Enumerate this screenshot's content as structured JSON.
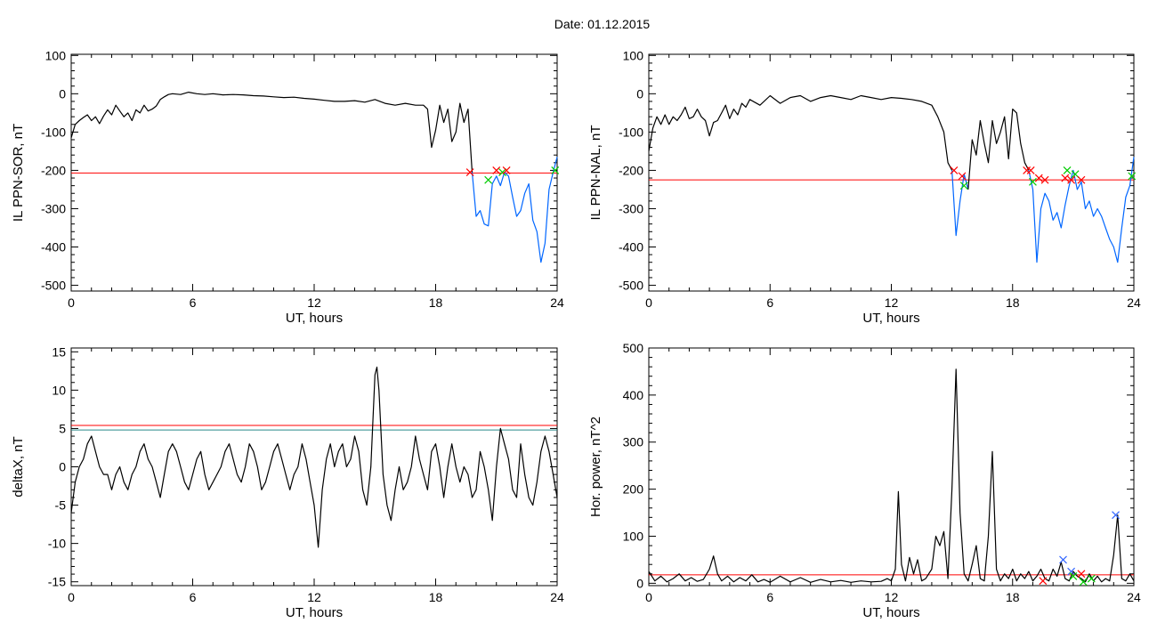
{
  "title": "Date:  01.12.2015",
  "chart_data": [
    {
      "type": "line",
      "title": "",
      "xlabel": "UT, hours",
      "ylabel": "IL PPN-SOR, nT",
      "xlim": [
        0,
        24
      ],
      "ylim": [
        -515,
        103
      ],
      "xticks": [
        0,
        6,
        12,
        18,
        24
      ],
      "yticks": [
        -500,
        -400,
        -300,
        -200,
        -100,
        0,
        100
      ],
      "grid": false,
      "threshold": -207,
      "threshold_color": "#ff0000",
      "series": [
        {
          "color": "#000000",
          "x": [
            0,
            0.2,
            0.4,
            0.6,
            0.8,
            1.0,
            1.2,
            1.4,
            1.6,
            1.8,
            2.0,
            2.2,
            2.4,
            2.6,
            2.8,
            3.0,
            3.2,
            3.4,
            3.6,
            3.8,
            4.0,
            4.2,
            4.4,
            4.6,
            4.8,
            5.0,
            5.4,
            5.8,
            6.2,
            6.6,
            7.0,
            7.5,
            8.0,
            8.5,
            9.0,
            9.5,
            10.0,
            10.5,
            11.0,
            11.5,
            12.0,
            12.5,
            13.0,
            13.5,
            14.0,
            14.5,
            15.0,
            15.5,
            16.0,
            16.5,
            17.0,
            17.4,
            17.6,
            17.8,
            18.0,
            18.2,
            18.4,
            18.6,
            18.8,
            19.0,
            19.2,
            19.4,
            19.6,
            19.8
          ],
          "y": [
            -115,
            -80,
            -70,
            -62,
            -55,
            -70,
            -60,
            -78,
            -58,
            -42,
            -55,
            -30,
            -45,
            -60,
            -50,
            -70,
            -42,
            -50,
            -30,
            -45,
            -40,
            -32,
            -15,
            -8,
            -2,
            0,
            -2,
            4,
            0,
            -2,
            0,
            -3,
            -2,
            -3,
            -5,
            -6,
            -8,
            -10,
            -9,
            -12,
            -14,
            -17,
            -20,
            -20,
            -18,
            -22,
            -15,
            -25,
            -30,
            -25,
            -30,
            -30,
            -40,
            -140,
            -95,
            -30,
            -75,
            -40,
            -125,
            -100,
            -25,
            -75,
            -40,
            -205
          ]
        },
        {
          "color": "#0066ff",
          "x": [
            19.8,
            20.0,
            20.2,
            20.4,
            20.6,
            20.8,
            21.0,
            21.2,
            21.4,
            21.6,
            21.8,
            22.0,
            22.2,
            22.4,
            22.6,
            22.8,
            23.0,
            23.2,
            23.4,
            23.6,
            23.8,
            24.0
          ],
          "y": [
            -205,
            -320,
            -305,
            -340,
            -345,
            -235,
            -215,
            -240,
            -205,
            -215,
            -270,
            -320,
            -305,
            -260,
            -235,
            -330,
            -360,
            -440,
            -390,
            -250,
            -205,
            -165
          ]
        }
      ],
      "markers": [
        {
          "x": 19.7,
          "y": -205,
          "color": "#ff0000"
        },
        {
          "x": 20.6,
          "y": -225,
          "color": "#00cc00"
        },
        {
          "x": 21.0,
          "y": -200,
          "color": "#ff0000"
        },
        {
          "x": 21.3,
          "y": -205,
          "color": "#00cc00"
        },
        {
          "x": 21.5,
          "y": -200,
          "color": "#ff0000"
        },
        {
          "x": 23.9,
          "y": -200,
          "color": "#00cc00"
        }
      ]
    },
    {
      "type": "line",
      "title": "",
      "xlabel": "UT, hours",
      "ylabel": "IL PPN-NAL, nT",
      "xlim": [
        0,
        24
      ],
      "ylim": [
        -515,
        103
      ],
      "xticks": [
        0,
        6,
        12,
        18,
        24
      ],
      "yticks": [
        -500,
        -400,
        -300,
        -200,
        -100,
        0,
        100
      ],
      "grid": false,
      "threshold": -225,
      "threshold_color": "#ff0000",
      "series": [
        {
          "color": "#000000",
          "x": [
            0,
            0.2,
            0.4,
            0.6,
            0.8,
            1.0,
            1.2,
            1.4,
            1.6,
            1.8,
            2.0,
            2.2,
            2.4,
            2.6,
            2.8,
            3.0,
            3.2,
            3.4,
            3.6,
            3.8,
            4.0,
            4.2,
            4.4,
            4.6,
            4.8,
            5.0,
            5.5,
            6.0,
            6.5,
            7.0,
            7.5,
            8.0,
            8.5,
            9.0,
            9.5,
            10.0,
            10.5,
            11.0,
            11.5,
            12.0,
            12.5,
            13.0,
            13.5,
            14.0,
            14.3,
            14.6,
            14.8,
            15.0
          ],
          "y": [
            -150,
            -90,
            -60,
            -80,
            -55,
            -80,
            -60,
            -70,
            -55,
            -35,
            -65,
            -60,
            -40,
            -60,
            -70,
            -110,
            -75,
            -70,
            -50,
            -30,
            -65,
            -40,
            -55,
            -25,
            -35,
            -15,
            -30,
            -5,
            -25,
            -10,
            -5,
            -20,
            -10,
            -5,
            -10,
            -15,
            -5,
            -10,
            -15,
            -10,
            -12,
            -15,
            -20,
            -30,
            -60,
            -100,
            -180,
            -200
          ]
        },
        {
          "color": "#0066ff",
          "x": [
            15.0,
            15.2,
            15.4,
            15.6,
            15.8
          ],
          "y": [
            -200,
            -370,
            -280,
            -210,
            -250
          ]
        },
        {
          "color": "#000000",
          "x": [
            15.8,
            16.0,
            16.2,
            16.4,
            16.6,
            16.8,
            17.0,
            17.2,
            17.4,
            17.6,
            17.8,
            18.0,
            18.2,
            18.4,
            18.6,
            18.8
          ],
          "y": [
            -250,
            -120,
            -160,
            -70,
            -130,
            -180,
            -70,
            -130,
            -100,
            -60,
            -170,
            -40,
            -50,
            -130,
            -180,
            -200
          ]
        },
        {
          "color": "#0066ff",
          "x": [
            18.8,
            19.0,
            19.2,
            19.4,
            19.6,
            19.8,
            20.0,
            20.2,
            20.4,
            20.6,
            20.8,
            21.0,
            21.2,
            21.4,
            21.6,
            21.8,
            22.0,
            22.2,
            22.4,
            22.6,
            22.8,
            23.0,
            23.2,
            23.4,
            23.6,
            23.8,
            24.0
          ],
          "y": [
            -200,
            -250,
            -440,
            -300,
            -260,
            -280,
            -330,
            -310,
            -350,
            -290,
            -240,
            -200,
            -250,
            -230,
            -300,
            -280,
            -320,
            -300,
            -320,
            -350,
            -380,
            -400,
            -440,
            -350,
            -270,
            -240,
            -165
          ]
        }
      ],
      "markers": [
        {
          "x": 15.1,
          "y": -200,
          "color": "#ff0000"
        },
        {
          "x": 15.5,
          "y": -215,
          "color": "#ff0000"
        },
        {
          "x": 15.6,
          "y": -240,
          "color": "#00cc00"
        },
        {
          "x": 18.7,
          "y": -200,
          "color": "#ff0000"
        },
        {
          "x": 18.9,
          "y": -200,
          "color": "#ff0000"
        },
        {
          "x": 19.0,
          "y": -230,
          "color": "#00cc00"
        },
        {
          "x": 19.3,
          "y": -220,
          "color": "#ff0000"
        },
        {
          "x": 19.6,
          "y": -225,
          "color": "#ff0000"
        },
        {
          "x": 20.6,
          "y": -220,
          "color": "#ff0000"
        },
        {
          "x": 20.7,
          "y": -200,
          "color": "#00cc00"
        },
        {
          "x": 20.9,
          "y": -225,
          "color": "#ff0000"
        },
        {
          "x": 21.1,
          "y": -210,
          "color": "#00cc00"
        },
        {
          "x": 21.4,
          "y": -225,
          "color": "#ff0000"
        },
        {
          "x": 23.9,
          "y": -215,
          "color": "#00cc00"
        }
      ]
    },
    {
      "type": "line",
      "title": "",
      "xlabel": "UT, hours",
      "ylabel": "deltaX, nT",
      "xlim": [
        0,
        24
      ],
      "ylim": [
        -15.5,
        15.5
      ],
      "xticks": [
        0,
        6,
        12,
        18,
        24
      ],
      "yticks": [
        -15,
        -10,
        -5,
        0,
        5,
        10,
        15
      ],
      "grid": false,
      "thresholds": [
        {
          "value": 5.4,
          "color": "#ff0000"
        },
        {
          "value": 4.8,
          "color": "#2a8a8a"
        }
      ],
      "series": [
        {
          "color": "#000000",
          "x": [
            0,
            0.2,
            0.4,
            0.6,
            0.8,
            1.0,
            1.2,
            1.4,
            1.6,
            1.8,
            2.0,
            2.2,
            2.4,
            2.6,
            2.8,
            3.0,
            3.2,
            3.4,
            3.6,
            3.8,
            4.0,
            4.2,
            4.4,
            4.6,
            4.8,
            5.0,
            5.2,
            5.4,
            5.6,
            5.8,
            6.0,
            6.2,
            6.4,
            6.6,
            6.8,
            7.0,
            7.2,
            7.4,
            7.6,
            7.8,
            8.0,
            8.2,
            8.4,
            8.6,
            8.8,
            9.0,
            9.2,
            9.4,
            9.6,
            9.8,
            10.0,
            10.2,
            10.4,
            10.6,
            10.8,
            11.0,
            11.2,
            11.4,
            11.6,
            11.8,
            12.0,
            12.2,
            12.4,
            12.6,
            12.8,
            13.0,
            13.2,
            13.4,
            13.6,
            13.8,
            14.0,
            14.2,
            14.4,
            14.6,
            14.8,
            15.0,
            15.1,
            15.2,
            15.4,
            15.6,
            15.8,
            16.0,
            16.2,
            16.4,
            16.6,
            16.8,
            17.0,
            17.2,
            17.4,
            17.6,
            17.8,
            18.0,
            18.2,
            18.4,
            18.6,
            18.8,
            19.0,
            19.2,
            19.4,
            19.6,
            19.8,
            20.0,
            20.2,
            20.4,
            20.6,
            20.8,
            21.0,
            21.2,
            21.4,
            21.6,
            21.8,
            22.0,
            22.2,
            22.4,
            22.6,
            22.8,
            23.0,
            23.2,
            23.4,
            23.6,
            23.8,
            24.0
          ],
          "y": [
            -6,
            -2,
            0,
            1,
            3,
            4,
            2,
            0,
            -1,
            -1,
            -3,
            -1,
            0,
            -2,
            -3,
            -1,
            0,
            2,
            3,
            1,
            0,
            -2,
            -4,
            -1,
            2,
            3,
            2,
            0,
            -2,
            -3,
            -1,
            1,
            2,
            -1,
            -3,
            -2,
            -1,
            0,
            2,
            3,
            1,
            -1,
            -2,
            0,
            3,
            2,
            0,
            -3,
            -2,
            0,
            2,
            3,
            1,
            -1,
            -3,
            -1,
            0,
            3,
            1,
            -2,
            -5,
            -10.5,
            -3,
            1,
            3,
            0,
            2,
            3,
            0,
            1,
            4,
            2,
            -3,
            -5,
            0,
            12,
            13,
            10,
            -1,
            -5,
            -7,
            -3,
            0,
            -3,
            -2,
            0,
            4,
            1,
            -1,
            -3,
            2,
            3,
            0,
            -4,
            0,
            3,
            0,
            -2,
            0,
            -1,
            -4,
            -3,
            2,
            0,
            -3,
            -7,
            0,
            5,
            3,
            1,
            -3,
            -4,
            3,
            -1,
            -4,
            -5,
            -2,
            2,
            4,
            2,
            -1,
            -4
          ]
        }
      ],
      "markers": []
    },
    {
      "type": "line",
      "title": "",
      "xlabel": "UT, hours",
      "ylabel": "Hor. power, nT^2",
      "xlim": [
        0,
        24
      ],
      "ylim": [
        -5,
        500
      ],
      "xticks": [
        0,
        6,
        12,
        18,
        24
      ],
      "yticks": [
        0,
        100,
        200,
        300,
        400,
        500
      ],
      "grid": false,
      "threshold": 18,
      "threshold_color": "#ff0000",
      "series": [
        {
          "color": "#000000",
          "x": [
            0,
            0.3,
            0.6,
            0.9,
            1.2,
            1.5,
            1.8,
            2.1,
            2.4,
            2.7,
            3.0,
            3.2,
            3.4,
            3.6,
            3.9,
            4.2,
            4.5,
            4.8,
            5.1,
            5.4,
            5.7,
            6.0,
            6.5,
            7.0,
            7.5,
            8.0,
            8.5,
            9.0,
            9.5,
            10.0,
            10.5,
            11.0,
            11.5,
            11.8,
            12.0,
            12.2,
            12.35,
            12.5,
            12.7,
            12.9,
            13.1,
            13.3,
            13.5,
            13.7,
            14.0,
            14.2,
            14.4,
            14.6,
            14.8,
            15.0,
            15.2,
            15.4,
            15.6,
            15.8,
            16.0,
            16.2,
            16.4,
            16.6,
            16.8,
            17.0,
            17.2,
            17.4,
            17.6,
            17.8,
            18.0,
            18.2,
            18.4,
            18.6,
            18.8,
            19.0,
            19.2,
            19.4,
            19.6,
            19.8,
            20.0,
            20.2,
            20.4,
            20.6,
            20.8,
            21.0,
            21.2,
            21.4,
            21.6,
            21.8,
            22.0,
            22.2,
            22.4,
            22.6,
            22.8,
            23.0,
            23.2,
            23.4,
            23.6,
            23.8,
            24.0
          ],
          "y": [
            25,
            5,
            15,
            3,
            10,
            20,
            5,
            12,
            4,
            8,
            30,
            58,
            20,
            5,
            15,
            3,
            12,
            5,
            18,
            3,
            8,
            2,
            15,
            3,
            12,
            2,
            8,
            3,
            6,
            2,
            5,
            3,
            4,
            10,
            5,
            30,
            195,
            40,
            5,
            55,
            20,
            50,
            5,
            10,
            30,
            100,
            80,
            110,
            10,
            200,
            455,
            150,
            20,
            5,
            40,
            80,
            10,
            5,
            100,
            280,
            30,
            5,
            20,
            10,
            30,
            5,
            20,
            10,
            25,
            5,
            15,
            30,
            10,
            5,
            30,
            15,
            45,
            10,
            5,
            25,
            15,
            10,
            3,
            20,
            5,
            15,
            3,
            10,
            5,
            60,
            145,
            10,
            5,
            20,
            5
          ]
        }
      ],
      "markers": [
        {
          "x": 19.5,
          "y": 5,
          "color": "#ff0000"
        },
        {
          "x": 20.5,
          "y": 50,
          "color": "#3366ff"
        },
        {
          "x": 20.9,
          "y": 25,
          "color": "#3366ff"
        },
        {
          "x": 21.0,
          "y": 15,
          "color": "#00cc00"
        },
        {
          "x": 21.4,
          "y": 20,
          "color": "#ff0000"
        },
        {
          "x": 21.5,
          "y": 3,
          "color": "#00cc00"
        },
        {
          "x": 21.9,
          "y": 10,
          "color": "#00cc00"
        },
        {
          "x": 23.1,
          "y": 145,
          "color": "#3366ff"
        }
      ]
    }
  ]
}
